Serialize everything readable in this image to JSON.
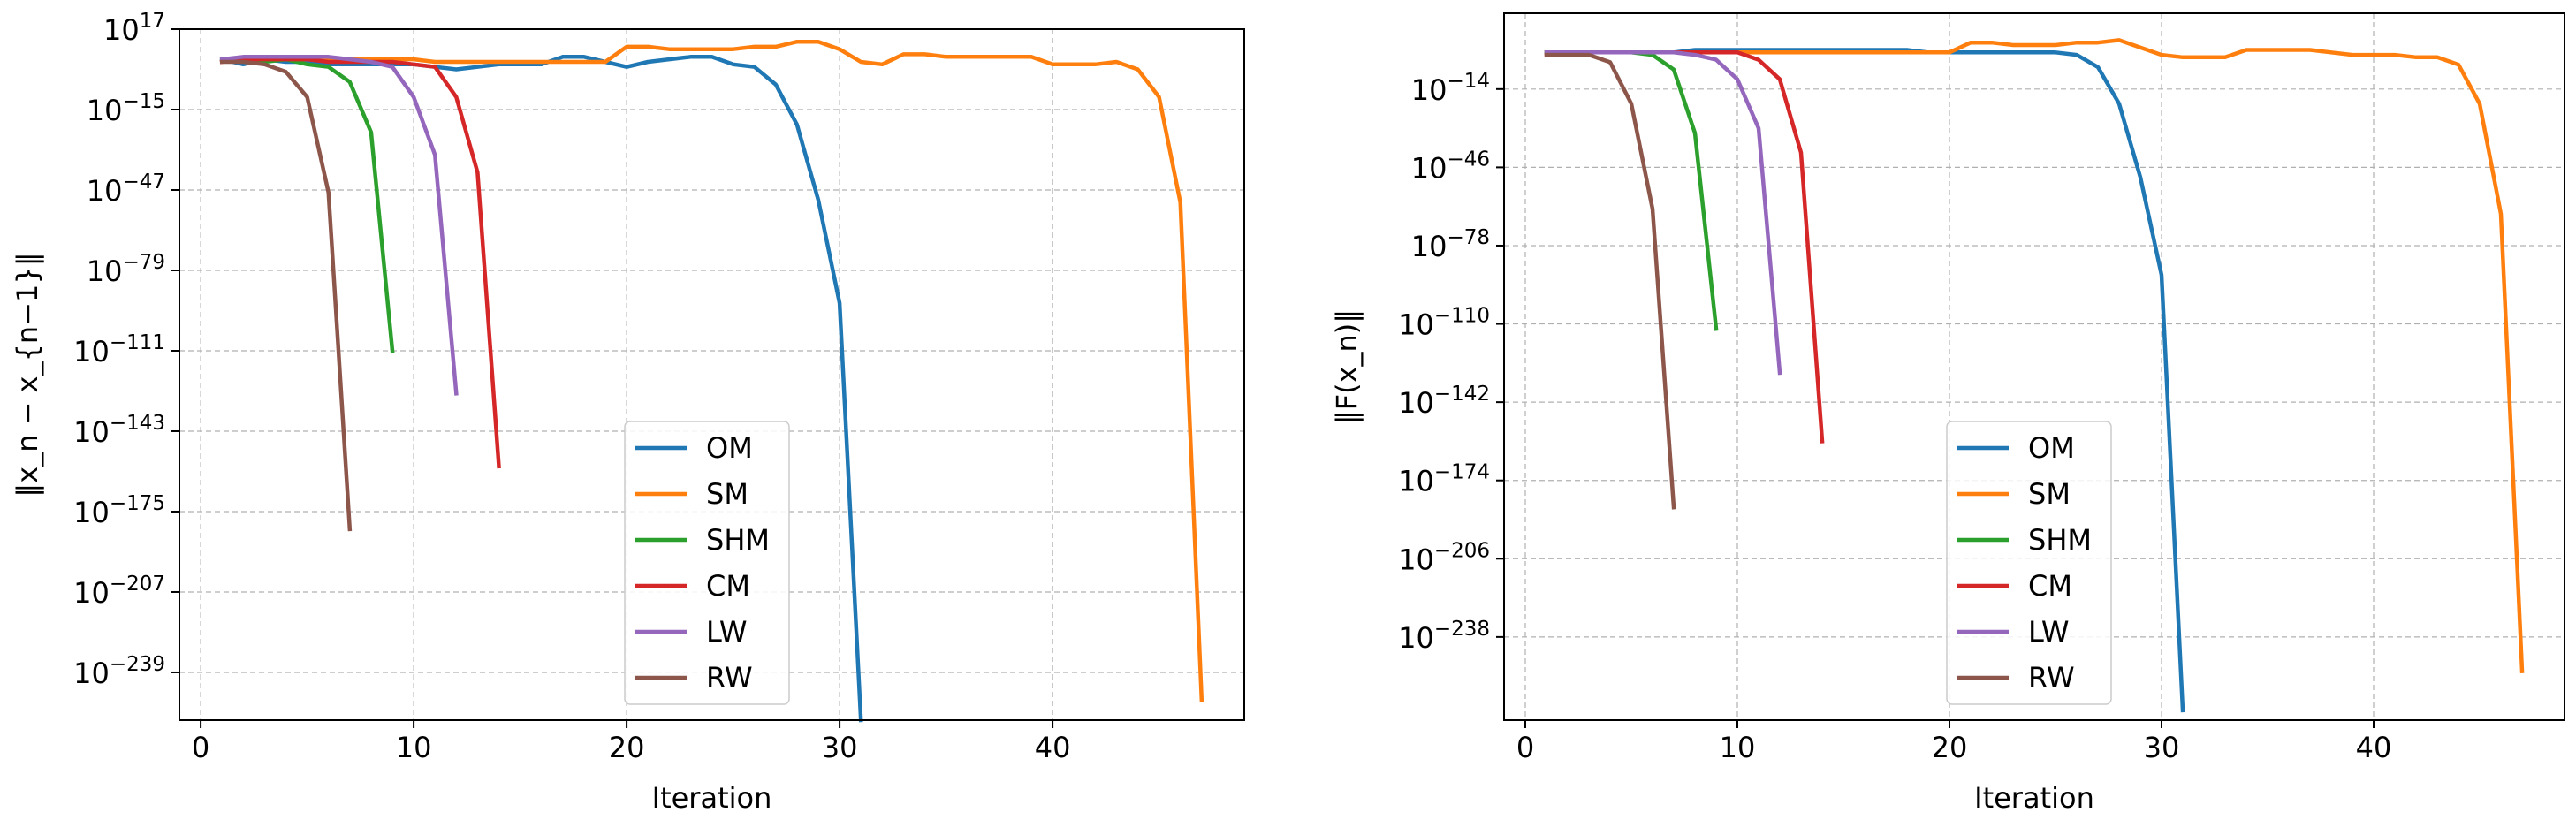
{
  "chart_data": [
    {
      "type": "line",
      "title": "",
      "xlabel": "Iteration",
      "ylabel": "‖x_n − x_{n−1}‖",
      "y_scale": "log",
      "ylim_exp": [
        -258,
        17
      ],
      "xlim": [
        -1,
        49
      ],
      "grid": true,
      "legend_loc": "lower-center",
      "x_ticks": [
        0,
        10,
        20,
        30,
        40
      ],
      "y_tick_exps": [
        17,
        -15,
        -47,
        -79,
        -111,
        -143,
        -175,
        -207,
        -239
      ],
      "series": [
        {
          "name": "OM",
          "color": "#1f77b4",
          "x": [
            1,
            2,
            3,
            4,
            5,
            6,
            7,
            8,
            9,
            10,
            11,
            12,
            13,
            14,
            15,
            16,
            17,
            18,
            19,
            20,
            21,
            22,
            23,
            24,
            25,
            26,
            27,
            28,
            29,
            30,
            31
          ],
          "y_exp": [
            5,
            3,
            5,
            4,
            4,
            3,
            3,
            3,
            3,
            3,
            2,
            1,
            2,
            3,
            3,
            3,
            6,
            6,
            4,
            2,
            4,
            5,
            6,
            6,
            3,
            2,
            -5,
            -21,
            -51,
            -92,
            -258
          ]
        },
        {
          "name": "SM",
          "color": "#ff7f0e",
          "x": [
            1,
            2,
            3,
            4,
            5,
            6,
            7,
            8,
            9,
            10,
            11,
            12,
            13,
            14,
            15,
            16,
            17,
            18,
            19,
            20,
            21,
            22,
            23,
            24,
            25,
            26,
            27,
            28,
            29,
            30,
            31,
            32,
            33,
            34,
            35,
            36,
            37,
            38,
            39,
            40,
            41,
            42,
            43,
            44,
            45,
            46,
            47
          ],
          "y_exp": [
            4,
            5,
            5,
            5,
            5,
            5,
            5,
            5,
            5,
            5,
            4,
            4,
            4,
            4,
            4,
            4,
            4,
            4,
            4,
            10,
            10,
            9,
            9,
            9,
            9,
            10,
            10,
            12,
            12,
            9,
            4,
            3,
            7,
            7,
            6,
            6,
            6,
            6,
            6,
            3,
            3,
            3,
            4,
            1,
            -10,
            -52,
            -250
          ]
        },
        {
          "name": "SHM",
          "color": "#2ca02c",
          "x": [
            1,
            2,
            3,
            4,
            5,
            6,
            7,
            8,
            9
          ],
          "y_exp": [
            5,
            5,
            4,
            5,
            3,
            2,
            -4,
            -24,
            -111
          ]
        },
        {
          "name": "CM",
          "color": "#d62728",
          "x": [
            1,
            2,
            3,
            4,
            5,
            6,
            7,
            8,
            9,
            10,
            11,
            12,
            13,
            14
          ],
          "y_exp": [
            4,
            5,
            5,
            5,
            5,
            4,
            4,
            4,
            4,
            3,
            2,
            -10,
            -40,
            -157
          ]
        },
        {
          "name": "LW",
          "color": "#9467bd",
          "x": [
            1,
            2,
            3,
            4,
            5,
            6,
            7,
            8,
            9,
            10,
            11,
            12
          ],
          "y_exp": [
            5,
            6,
            6,
            6,
            6,
            6,
            5,
            4,
            2,
            -10,
            -33,
            -128
          ]
        },
        {
          "name": "RW",
          "color": "#8c564b",
          "x": [
            1,
            2,
            3,
            4,
            5,
            6,
            7
          ],
          "y_exp": [
            4,
            4,
            3,
            0,
            -10,
            -48,
            -182
          ]
        }
      ]
    },
    {
      "type": "line",
      "title": "",
      "xlabel": "Iteration",
      "ylabel": "‖F(x_n)‖",
      "y_scale": "log",
      "ylim_exp": [
        -272,
        17
      ],
      "xlim": [
        -1,
        49
      ],
      "grid": true,
      "legend_loc": "lower-center",
      "x_ticks": [
        0,
        10,
        20,
        30,
        40
      ],
      "y_tick_exps": [
        -14,
        -46,
        -78,
        -110,
        -142,
        -174,
        -206,
        -238
      ],
      "series": [
        {
          "name": "OM",
          "color": "#1f77b4",
          "x": [
            1,
            2,
            3,
            4,
            5,
            6,
            7,
            8,
            9,
            10,
            11,
            12,
            13,
            14,
            15,
            16,
            17,
            18,
            19,
            20,
            21,
            22,
            23,
            24,
            25,
            26,
            27,
            28,
            29,
            30,
            31
          ],
          "y_exp": [
            1,
            1,
            1,
            1,
            1,
            1,
            1,
            2,
            2,
            2,
            2,
            2,
            2,
            2,
            2,
            2,
            2,
            2,
            1,
            1,
            1,
            1,
            1,
            1,
            1,
            0,
            -5,
            -20,
            -50,
            -90,
            -268
          ]
        },
        {
          "name": "SM",
          "color": "#ff7f0e",
          "x": [
            1,
            2,
            3,
            4,
            5,
            6,
            7,
            8,
            9,
            10,
            11,
            12,
            13,
            14,
            15,
            16,
            17,
            18,
            19,
            20,
            21,
            22,
            23,
            24,
            25,
            26,
            27,
            28,
            29,
            30,
            31,
            32,
            33,
            34,
            35,
            36,
            37,
            38,
            39,
            40,
            41,
            42,
            43,
            44,
            45,
            46,
            47
          ],
          "y_exp": [
            1,
            1,
            1,
            1,
            1,
            1,
            1,
            1,
            1,
            1,
            1,
            1,
            1,
            1,
            1,
            1,
            1,
            1,
            1,
            1,
            5,
            5,
            4,
            4,
            4,
            5,
            5,
            6,
            3,
            0,
            -1,
            -1,
            -1,
            2,
            2,
            2,
            2,
            1,
            0,
            0,
            0,
            -1,
            -1,
            -4,
            -20,
            -65,
            -252
          ]
        },
        {
          "name": "SHM",
          "color": "#2ca02c",
          "x": [
            1,
            2,
            3,
            4,
            5,
            6,
            7,
            8,
            9
          ],
          "y_exp": [
            1,
            1,
            1,
            1,
            1,
            0,
            -6,
            -32,
            -112
          ]
        },
        {
          "name": "CM",
          "color": "#d62728",
          "x": [
            1,
            2,
            3,
            4,
            5,
            6,
            7,
            8,
            9,
            10,
            11,
            12,
            13,
            14
          ],
          "y_exp": [
            0,
            1,
            1,
            1,
            1,
            1,
            1,
            1,
            1,
            1,
            -2,
            -10,
            -40,
            -158
          ]
        },
        {
          "name": "LW",
          "color": "#9467bd",
          "x": [
            1,
            2,
            3,
            4,
            5,
            6,
            7,
            8,
            9,
            10,
            11,
            12
          ],
          "y_exp": [
            1,
            1,
            1,
            1,
            1,
            1,
            1,
            0,
            -2,
            -10,
            -30,
            -130
          ]
        },
        {
          "name": "RW",
          "color": "#8c564b",
          "x": [
            1,
            2,
            3,
            4,
            5,
            6,
            7
          ],
          "y_exp": [
            0,
            0,
            0,
            -3,
            -20,
            -63,
            -185
          ]
        }
      ]
    }
  ]
}
